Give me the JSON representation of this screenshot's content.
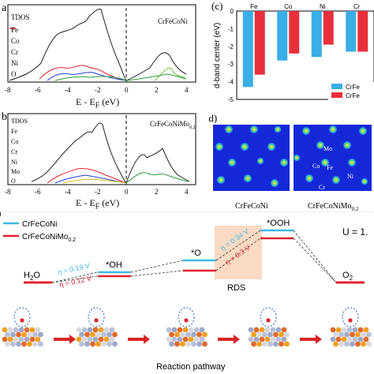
{
  "panel_a": {
    "label": "a",
    "title": "CrFeCoNi",
    "legend": [
      "TDOS",
      "Fe",
      "Co",
      "Cr",
      "Ni",
      "O"
    ],
    "xlabel": "E - E",
    "xlabel_sub": "F",
    "xlabel_unit": " (eV)",
    "ticks": [
      "-8",
      "-6",
      "-4",
      "-2",
      "0",
      "2",
      "4"
    ]
  },
  "panel_b": {
    "label": "b",
    "title": "CrFeCoNiMo",
    "title_sub": "0.2",
    "legend": [
      "TDOS",
      "Fe",
      "Co",
      "Cr",
      "Ni",
      "Mo",
      "O"
    ],
    "xlabel": "E - E",
    "xlabel_sub": "F",
    "xlabel_unit": " (eV)",
    "ticks": [
      "-8",
      "-6",
      "-4",
      "-2",
      "0",
      "2",
      "4"
    ]
  },
  "panel_c": {
    "label": "(c)",
    "ylabel": "d-band center (eV)",
    "legend_1": "CrFe",
    "legend_2": "CrFe",
    "colors": {
      "series_1": "#3aaee6",
      "series_2": "#e8303c"
    }
  },
  "panel_d": {
    "label": "(d)",
    "caption_left": "CrFeCoNi",
    "caption_right": "CrFeCoNiMo",
    "caption_right_sub": "0.2",
    "atom_labels": [
      "Mo",
      "Co",
      "Fe",
      "Ni",
      "Cr"
    ]
  },
  "panel_e": {
    "legend_1": "CrFeCoNi",
    "legend_2": "CrFeCoNiMo",
    "legend_2_sub": "0.2",
    "u_label": "U = 1.",
    "states": [
      "H",
      "O",
      "*OH",
      "*O",
      "*OOH",
      "O",
      "2"
    ],
    "h2o_sub": "2",
    "eta_blue_1": "η = 0.19 V",
    "eta_red_1": "η = 0.12 V",
    "eta_blue_2": "η = 0.34 V",
    "eta_red_2": "η = 0.3 V",
    "rds": "RDS",
    "xlabel": "Reaction pathway",
    "colors": {
      "blue": "#3fb8e8",
      "red": "#e0242e"
    }
  },
  "chart_data": {
    "type": "bar",
    "title": "",
    "categories": [
      "Fe",
      "Co",
      "Ni",
      "Cr"
    ],
    "series": [
      {
        "name": "CrFe",
        "values": [
          -4.3,
          -2.8,
          -2.6,
          -2.3
        ]
      },
      {
        "name": "CrFe",
        "values": [
          -3.6,
          -2.4,
          -1.9,
          -2.3
        ]
      }
    ],
    "ylabel": "d-band center (eV)",
    "ylim": [
      -5,
      0
    ],
    "yticks": [
      "0",
      "-1",
      "-2",
      "-3",
      "-4",
      "-5"
    ]
  }
}
